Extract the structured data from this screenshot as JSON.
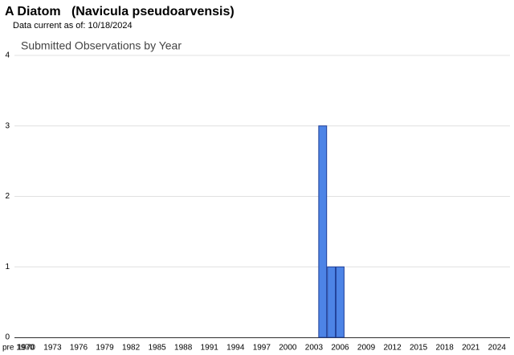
{
  "header": {
    "title": "A Diatom   (Navicula pseudoarvensis)",
    "subtitle": "Data current as of: 10/18/2024"
  },
  "chart_data": {
    "type": "bar",
    "title": "Submitted Observations by Year",
    "categories": [
      "pre 1970",
      "1970",
      null,
      null,
      "1973",
      null,
      null,
      "1976",
      null,
      null,
      "1979",
      null,
      null,
      "1982",
      null,
      null,
      "1985",
      null,
      null,
      "1988",
      null,
      null,
      "1991",
      null,
      null,
      "1994",
      null,
      null,
      "1997",
      null,
      null,
      "2000",
      null,
      null,
      "2003",
      null,
      null,
      "2006",
      null,
      null,
      "2009",
      null,
      null,
      "2012",
      null,
      null,
      "2015",
      null,
      null,
      "2018",
      null,
      null,
      "2021",
      null,
      null,
      "2024"
    ],
    "values": [
      0,
      0,
      0,
      0,
      0,
      0,
      0,
      0,
      0,
      0,
      0,
      0,
      0,
      0,
      0,
      0,
      0,
      0,
      0,
      0,
      0,
      0,
      0,
      0,
      0,
      0,
      0,
      0,
      0,
      0,
      0,
      0,
      0,
      0,
      0,
      3,
      1,
      1,
      0,
      0,
      0,
      0,
      0,
      0,
      0,
      0,
      0,
      0,
      0,
      0,
      0,
      0,
      0,
      0,
      0,
      0
    ],
    "color": "#4d84e6",
    "ylim": [
      0,
      4
    ],
    "yticks": [
      0,
      1,
      2,
      3,
      4
    ],
    "grid": true
  }
}
